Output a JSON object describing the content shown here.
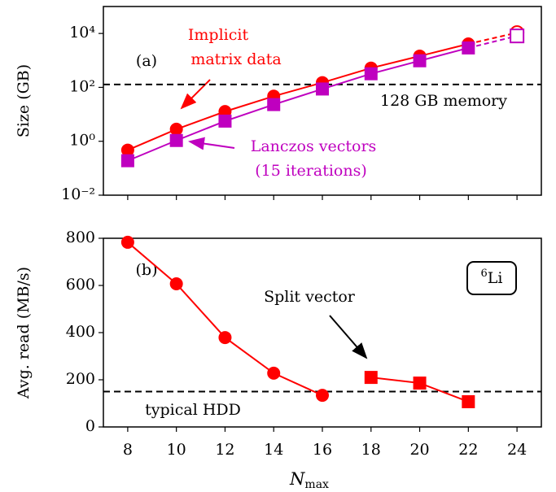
{
  "chart_data": [
    {
      "type": "line",
      "ylabel": "Size (GB)",
      "log_y": true,
      "panel_label": "(a)",
      "xlim": [
        7,
        25
      ],
      "xticks": [
        8,
        10,
        12,
        14,
        16,
        18,
        20,
        22,
        24
      ],
      "xtick_labels": false,
      "ylim": [
        0.01,
        100000
      ],
      "yticks": [
        {
          "value": 0.01,
          "label": "10⁻²"
        },
        {
          "value": 1,
          "label": "10⁰"
        },
        {
          "value": 100,
          "label": "10²"
        },
        {
          "value": 10000,
          "label": "10⁴"
        }
      ],
      "dashed_last": true,
      "hline": {
        "value": 128,
        "label": "128 GB memory"
      },
      "series": [
        {
          "name": [
            "Implicit",
            "matrix data"
          ],
          "color": "#ff0000",
          "marker": "circle",
          "x": [
            8,
            10,
            12,
            14,
            16,
            18,
            20,
            22,
            24
          ],
          "values": [
            0.47,
            2.8,
            12.7,
            47,
            150,
            520,
            1450,
            4100,
            10700
          ]
        },
        {
          "name": [
            "Lanczos vectors",
            "(15 iterations)"
          ],
          "color": "#bf00bf",
          "marker": "square",
          "x": [
            8,
            10,
            12,
            14,
            16,
            18,
            20,
            22,
            24
          ],
          "values": [
            0.19,
            1.07,
            5.6,
            23,
            87,
            320,
            970,
            2900,
            8100
          ]
        }
      ]
    },
    {
      "type": "line",
      "ylabel": "Avg. read (MB/s)",
      "log_y": false,
      "panel_label": "(b)",
      "xlabel": {
        "main": "N",
        "sub": "max"
      },
      "xlim": [
        7,
        25
      ],
      "xticks": [
        8,
        10,
        12,
        14,
        16,
        18,
        20,
        22,
        24
      ],
      "xtick_labels": true,
      "ylim": [
        0,
        800
      ],
      "yticks": [
        0,
        200,
        400,
        600,
        800
      ],
      "dashed_last": false,
      "hline": {
        "value": 150,
        "label": "typical HDD"
      },
      "annotation": "Split vector",
      "isotope": {
        "mass": "6",
        "symbol": "Li"
      },
      "series": [
        {
          "color": "#ff0000",
          "marker": "circle",
          "x": [
            8,
            10,
            12,
            14,
            16
          ],
          "values": [
            783,
            607,
            379,
            228,
            134
          ]
        },
        {
          "color": "#ff0000",
          "marker": "square",
          "x": [
            18,
            20,
            22
          ],
          "values": [
            210,
            186,
            107
          ]
        }
      ]
    }
  ]
}
